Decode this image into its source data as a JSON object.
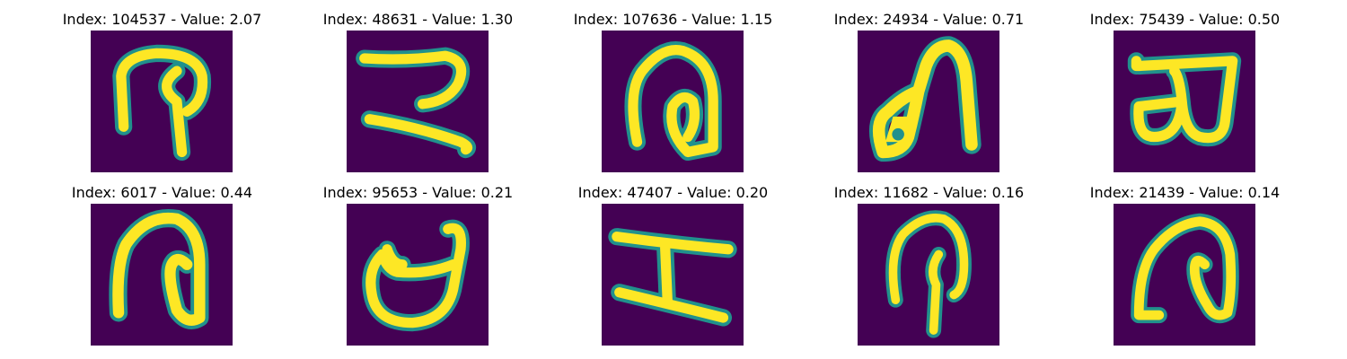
{
  "colors": {
    "background": "#440154",
    "stroke": "#fde725",
    "stroke_edge": "#21918c"
  },
  "panels": [
    {
      "title": "Index: 104537 - Value: 2.07",
      "glyph": "circled-hook-glyph"
    },
    {
      "title": "Index: 48631 - Value: 1.30",
      "glyph": "sideways-z-glyph"
    },
    {
      "title": "Index: 107636 - Value: 1.15",
      "glyph": "arch-with-loop-glyph"
    },
    {
      "title": "Index: 24934 - Value: 0.71",
      "glyph": "arch-with-dot-glyph"
    },
    {
      "title": "Index: 75439 - Value: 0.50",
      "glyph": "sideways-b-glyph"
    },
    {
      "title": "Index: 6017 - Value: 0.44",
      "glyph": "arch-with-hook-glyph"
    },
    {
      "title": "Index: 95653 - Value: 0.21",
      "glyph": "cup-with-handle-glyph"
    },
    {
      "title": "Index: 47407 - Value: 0.20",
      "glyph": "sideways-h-glyph"
    },
    {
      "title": "Index: 11682 - Value: 0.16",
      "glyph": "hook-with-stem-glyph"
    },
    {
      "title": "Index: 21439 - Value: 0.14",
      "glyph": "cursive-arch-glyph"
    }
  ]
}
